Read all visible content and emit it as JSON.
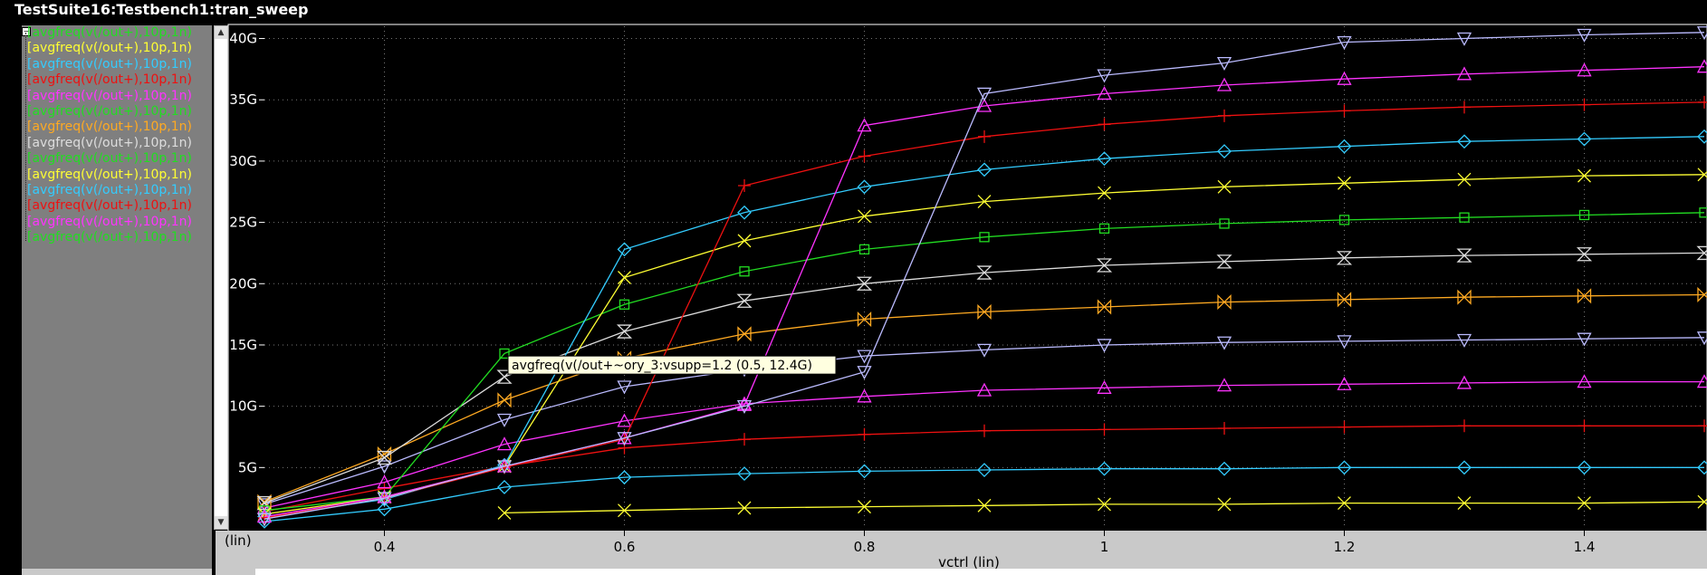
{
  "window": {
    "title": "TestSuite16:Testbench1:tran_sweep"
  },
  "legend": {
    "items": [
      {
        "label": "[avgfreq(v(/out+),10p,1n)",
        "color": "#22dd22"
      },
      {
        "label": "[avgfreq(v(/out+),10p,1n)",
        "color": "#ffff33"
      },
      {
        "label": "[avgfreq(v(/out+),10p,1n)",
        "color": "#33ccff"
      },
      {
        "label": "[avgfreq(v(/out+),10p,1n)",
        "color": "#ee1111"
      },
      {
        "label": "[avgfreq(v(/out+),10p,1n)",
        "color": "#ff33ff"
      },
      {
        "label": "[avgfreq(v(/out+),10p,1n)",
        "color": "#22dd22"
      },
      {
        "label": "[avgfreq(v(/out+),10p,1n)",
        "color": "#ffaa22"
      },
      {
        "label": "[avgfreq(v(/out+),10p,1n)",
        "color": "#dddddd"
      },
      {
        "label": "[avgfreq(v(/out+),10p,1n)",
        "color": "#22dd22"
      },
      {
        "label": "[avgfreq(v(/out+),10p,1n)",
        "color": "#ffff33"
      },
      {
        "label": "[avgfreq(v(/out+),10p,1n)",
        "color": "#33ccff"
      },
      {
        "label": "[avgfreq(v(/out+),10p,1n)",
        "color": "#ee1111"
      },
      {
        "label": "[avgfreq(v(/out+),10p,1n)",
        "color": "#ff33ff"
      },
      {
        "label": "[avgfreq(v(/out+),10p,1n)",
        "color": "#22dd22"
      }
    ]
  },
  "chart_data": {
    "type": "line",
    "xlabel": "vctrl (lin)",
    "x_scale_label": "(lin)",
    "xlim": [
      0.3,
      1.5
    ],
    "ylim": [
      0,
      41
    ],
    "x_ticks": [
      0.4,
      0.6,
      0.8,
      1,
      1.2,
      1.4
    ],
    "y_ticks": [
      {
        "value": 5,
        "label": "5G"
      },
      {
        "value": 10,
        "label": "10G"
      },
      {
        "value": 15,
        "label": "15G"
      },
      {
        "value": 20,
        "label": "20G"
      },
      {
        "value": 25,
        "label": "25G"
      },
      {
        "value": 30,
        "label": "30G"
      },
      {
        "value": 35,
        "label": "35G"
      },
      {
        "value": 40,
        "label": "40G"
      }
    ],
    "grid": true,
    "tooltip": {
      "text": "avgfreq(v(/out+~ory_3:vsupp=1.2 (0.5, 12.4G)",
      "x": 0.5,
      "y": 12.4
    },
    "series": [
      {
        "color": "#ffff33",
        "marker": "x",
        "x": [
          0.5,
          0.6,
          0.7,
          0.8,
          0.9,
          1.0,
          1.1,
          1.2,
          1.3,
          1.4,
          1.5
        ],
        "y": [
          1.3,
          1.5,
          1.7,
          1.8,
          1.9,
          2.0,
          2.0,
          2.1,
          2.1,
          2.1,
          2.2
        ]
      },
      {
        "color": "#33ccff",
        "marker": "diamond",
        "x": [
          0.3,
          0.4,
          0.5,
          0.6,
          0.7,
          0.8,
          0.9,
          1.0,
          1.1,
          1.2,
          1.3,
          1.4,
          1.5
        ],
        "y": [
          0.6,
          1.6,
          3.4,
          4.2,
          4.5,
          4.7,
          4.8,
          4.9,
          4.9,
          5.0,
          5.0,
          5.0,
          5.0
        ]
      },
      {
        "color": "#ee1111",
        "marker": "plus",
        "x": [
          0.3,
          0.4,
          0.5,
          0.6,
          0.7,
          0.8,
          0.9,
          1.0,
          1.1,
          1.2,
          1.3,
          1.4,
          1.5
        ],
        "y": [
          1.4,
          3.3,
          5.1,
          6.6,
          7.3,
          7.7,
          8.0,
          8.1,
          8.2,
          8.3,
          8.4,
          8.4,
          8.4
        ]
      },
      {
        "color": "#ff33ff",
        "marker": "triangle",
        "x": [
          0.3,
          0.4,
          0.5,
          0.6,
          0.7,
          0.8,
          0.9,
          1.0,
          1.1,
          1.2,
          1.3,
          1.4,
          1.5
        ],
        "y": [
          1.7,
          3.8,
          6.9,
          8.8,
          10.2,
          10.8,
          11.3,
          11.5,
          11.7,
          11.8,
          11.9,
          12.0,
          12.0
        ]
      },
      {
        "color": "#bbbbff",
        "marker": "triangle-down",
        "x": [
          0.3,
          0.4,
          0.5,
          0.6,
          0.7,
          0.8,
          0.9,
          1.0,
          1.1,
          1.2,
          1.3,
          1.4,
          1.5
        ],
        "y": [
          2.0,
          5.1,
          8.9,
          11.6,
          13.0,
          14.1,
          14.6,
          15.0,
          15.2,
          15.3,
          15.4,
          15.5,
          15.6
        ]
      },
      {
        "color": "#ffaa22",
        "marker": "bowtie",
        "x": [
          0.3,
          0.4,
          0.5,
          0.6,
          0.7,
          0.8,
          0.9,
          1.0,
          1.1,
          1.2,
          1.3,
          1.4,
          1.5
        ],
        "y": [
          2.2,
          6.1,
          10.5,
          13.9,
          15.9,
          17.1,
          17.7,
          18.1,
          18.5,
          18.7,
          18.9,
          19.0,
          19.1
        ]
      },
      {
        "color": "#dddddd",
        "marker": "hourglass",
        "x": [
          0.3,
          0.4,
          0.5,
          0.6,
          0.7,
          0.8,
          0.9,
          1.0,
          1.1,
          1.2,
          1.3,
          1.4,
          1.5
        ],
        "y": [
          2.1,
          5.8,
          12.4,
          16.1,
          18.6,
          20.0,
          20.9,
          21.5,
          21.8,
          22.1,
          22.3,
          22.4,
          22.5
        ]
      },
      {
        "color": "#22dd22",
        "marker": "square",
        "x": [
          0.3,
          0.4,
          0.5,
          0.6,
          0.7,
          0.8,
          0.9,
          1.0,
          1.1,
          1.2,
          1.3,
          1.4,
          1.5
        ],
        "y": [
          1.5,
          2.6,
          14.3,
          18.3,
          21.0,
          22.8,
          23.8,
          24.5,
          24.9,
          25.2,
          25.4,
          25.6,
          25.8
        ]
      },
      {
        "color": "#ffff33",
        "marker": "x",
        "x": [
          0.3,
          0.4,
          0.5,
          0.6,
          0.7,
          0.8,
          0.9,
          1.0,
          1.1,
          1.2,
          1.3,
          1.4,
          1.5
        ],
        "y": [
          1.2,
          2.6,
          5.1,
          20.5,
          23.5,
          25.5,
          26.7,
          27.4,
          27.9,
          28.2,
          28.5,
          28.8,
          28.9
        ]
      },
      {
        "color": "#33ccff",
        "marker": "diamond",
        "x": [
          0.3,
          0.4,
          0.5,
          0.6,
          0.7,
          0.8,
          0.9,
          1.0,
          1.1,
          1.2,
          1.3,
          1.4,
          1.5
        ],
        "y": [
          1.0,
          2.4,
          5.2,
          22.8,
          25.8,
          27.9,
          29.3,
          30.2,
          30.8,
          31.2,
          31.6,
          31.8,
          32.0
        ]
      },
      {
        "color": "#ee1111",
        "marker": "plus",
        "x": [
          0.3,
          0.4,
          0.5,
          0.6,
          0.7,
          0.8,
          0.9,
          1.0,
          1.1,
          1.2,
          1.3,
          1.4,
          1.5
        ],
        "y": [
          0.9,
          2.5,
          5.0,
          7.3,
          28.0,
          30.4,
          32.0,
          33.0,
          33.7,
          34.1,
          34.4,
          34.6,
          34.8
        ]
      },
      {
        "color": "#ff33ff",
        "marker": "triangle",
        "x": [
          0.3,
          0.4,
          0.5,
          0.6,
          0.7,
          0.8,
          0.9,
          1.0,
          1.1,
          1.2,
          1.3,
          1.4,
          1.5
        ],
        "y": [
          1.0,
          2.6,
          5.1,
          7.4,
          10.1,
          32.9,
          34.5,
          35.5,
          36.2,
          36.7,
          37.1,
          37.4,
          37.7
        ]
      },
      {
        "color": "#bbbbff",
        "marker": "triangle-down",
        "x": [
          0.3,
          0.4,
          0.5,
          0.6,
          0.7,
          0.8,
          0.9,
          1.0,
          1.1,
          1.2,
          1.3,
          1.4,
          1.5
        ],
        "y": [
          0.8,
          2.5,
          5.1,
          7.4,
          10.0,
          12.8,
          35.5,
          37.0,
          38.0,
          39.7,
          40.0,
          40.3,
          40.5
        ]
      }
    ]
  }
}
